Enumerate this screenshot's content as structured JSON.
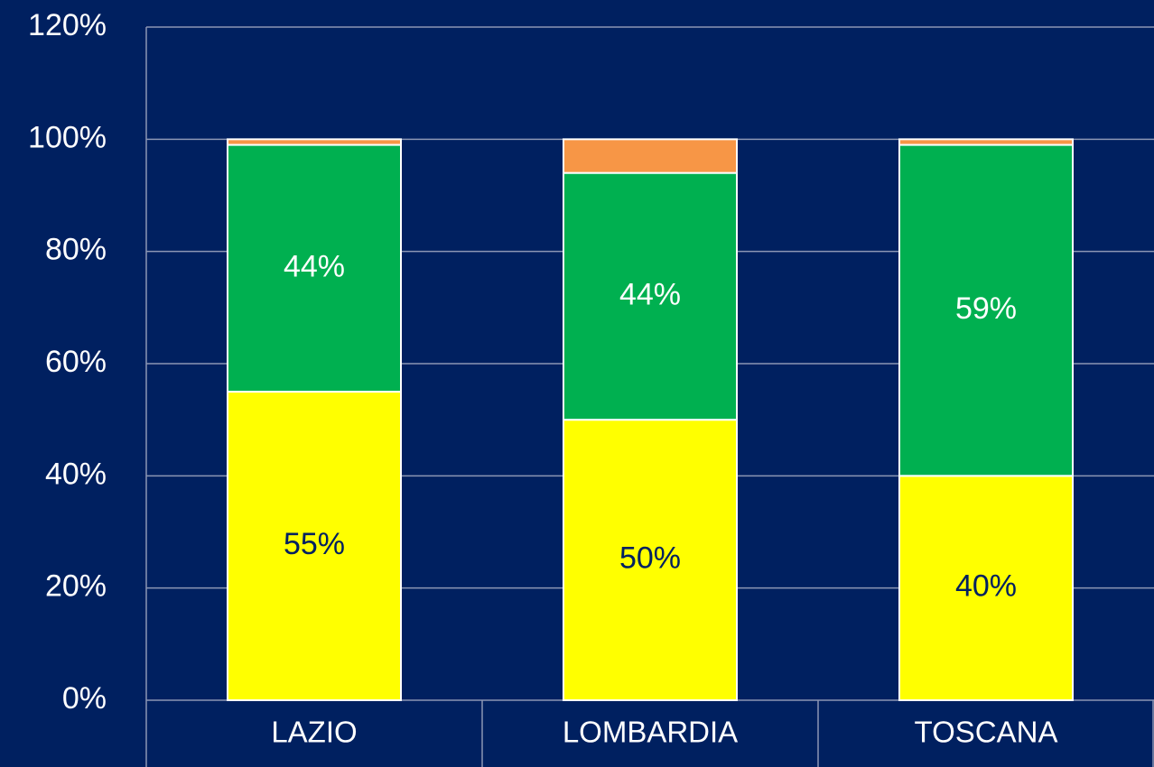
{
  "chart_data": {
    "type": "stacked_bar",
    "categories": [
      "LAZIO",
      "LOMBARDIA",
      "TOSCANA"
    ],
    "series": [
      {
        "color": "#ffff00",
        "values": [
          55,
          50,
          40
        ],
        "value_labels": [
          "55%",
          "50%",
          "40%"
        ],
        "label_color": "#002060"
      },
      {
        "color": "#00b050",
        "values": [
          44,
          44,
          59
        ],
        "value_labels": [
          "44%",
          "44%",
          "59%"
        ],
        "label_color": "#ffffff"
      },
      {
        "color": "#f79646",
        "values": [
          1,
          6,
          1
        ]
      }
    ],
    "ylim": [
      0,
      120
    ],
    "yticks": [
      {
        "value": 0,
        "label": "0%"
      },
      {
        "value": 20,
        "label": "20%"
      },
      {
        "value": 40,
        "label": "40%"
      },
      {
        "value": 60,
        "label": "60%"
      },
      {
        "value": 80,
        "label": "80%"
      },
      {
        "value": 100,
        "label": "100%"
      },
      {
        "value": 120,
        "label": "120%"
      }
    ],
    "grid": true
  }
}
